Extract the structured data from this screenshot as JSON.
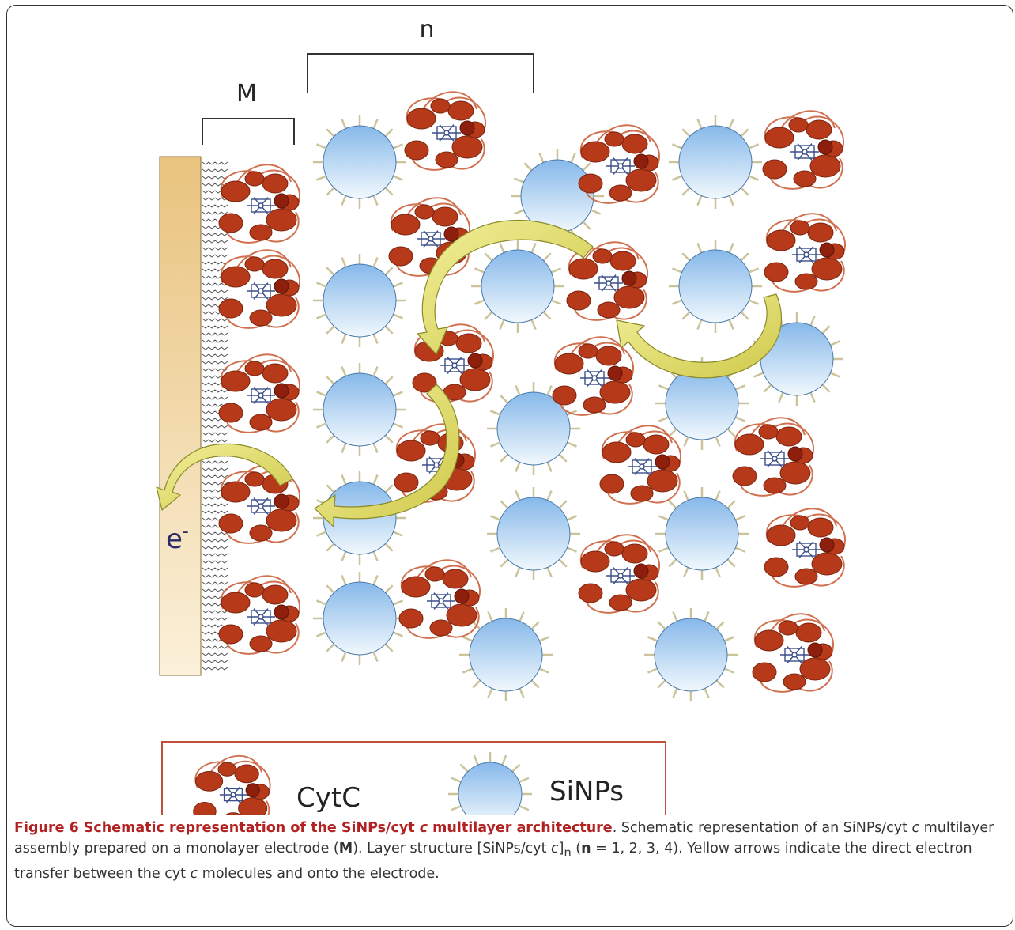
{
  "figure": {
    "label_n": "n",
    "label_m": "M",
    "label_electron": "e",
    "label_electron_sup": "-",
    "legend": {
      "cytc_label": "CytC",
      "sinps_label": "SiNPs"
    },
    "colors": {
      "electrode": "#ecc98a",
      "protein": "#b83a1c",
      "heme": "#3b4f8a",
      "sphere_top": "#9fc9ef",
      "sphere_bottom": "#eaf4fb",
      "arrow": "#e6e37a",
      "legend_border": "#c0503a"
    }
  },
  "caption": {
    "title_a": "Figure 6 Schematic representation of the SiNPs/cyt ",
    "title_c": "c",
    "title_b": " multilayer architecture",
    "s1": ". Schematic representation of an SiNPs/cyt ",
    "s1c": "c",
    "s2": " multilayer assembly prepared on a monolayer electrode (",
    "s2M": "M",
    "s3": "). Layer structure [SiNPs/cyt ",
    "s3c": "c",
    "s3b": "]",
    "s3sub": "n",
    "s3d": " (",
    "s3n": "n",
    "s4": " = 1, 2, 3, 4). Yellow arrows indicate the direct electron transfer between the cyt ",
    "s4c": "c",
    "s5": " molecules and onto the electrode."
  }
}
